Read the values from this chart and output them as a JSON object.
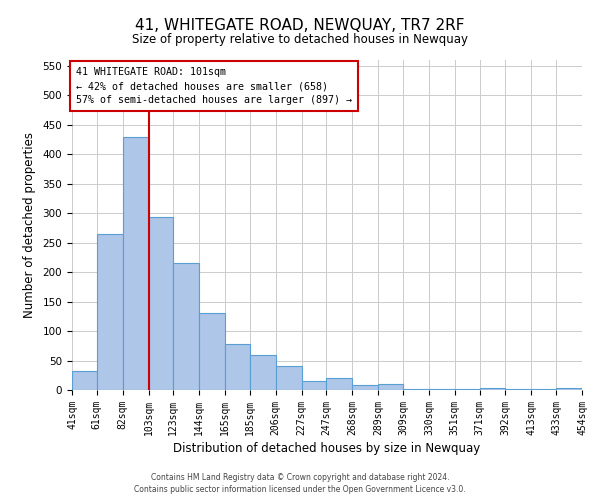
{
  "title": "41, WHITEGATE ROAD, NEWQUAY, TR7 2RF",
  "subtitle": "Size of property relative to detached houses in Newquay",
  "xlabel": "Distribution of detached houses by size in Newquay",
  "ylabel": "Number of detached properties",
  "footer_line1": "Contains HM Land Registry data © Crown copyright and database right 2024.",
  "footer_line2": "Contains public sector information licensed under the Open Government Licence v3.0.",
  "bin_edges": [
    41,
    61,
    82,
    103,
    123,
    144,
    165,
    185,
    206,
    227,
    247,
    268,
    289,
    309,
    330,
    351,
    371,
    392,
    413,
    433,
    454
  ],
  "bin_labels": [
    "41sqm",
    "61sqm",
    "82sqm",
    "103sqm",
    "123sqm",
    "144sqm",
    "165sqm",
    "185sqm",
    "206sqm",
    "227sqm",
    "247sqm",
    "268sqm",
    "289sqm",
    "309sqm",
    "330sqm",
    "351sqm",
    "371sqm",
    "392sqm",
    "413sqm",
    "433sqm",
    "454sqm"
  ],
  "counts": [
    32,
    265,
    430,
    293,
    215,
    130,
    78,
    59,
    40,
    15,
    20,
    8,
    10,
    1,
    1,
    1,
    3,
    1,
    1,
    4
  ],
  "bar_color": "#aec6e8",
  "bar_edge_color": "#5a9fd4",
  "property_line_x": 103,
  "property_line_color": "#cc0000",
  "annotation_title": "41 WHITEGATE ROAD: 101sqm",
  "annotation_line1": "← 42% of detached houses are smaller (658)",
  "annotation_line2": "57% of semi-detached houses are larger (897) →",
  "annotation_box_color": "#ffffff",
  "annotation_box_edge_color": "#cc0000",
  "ylim": [
    0,
    560
  ],
  "xlim": [
    41,
    454
  ],
  "yticks": [
    0,
    50,
    100,
    150,
    200,
    250,
    300,
    350,
    400,
    450,
    500,
    550
  ],
  "background_color": "#ffffff",
  "grid_color": "#cccccc"
}
